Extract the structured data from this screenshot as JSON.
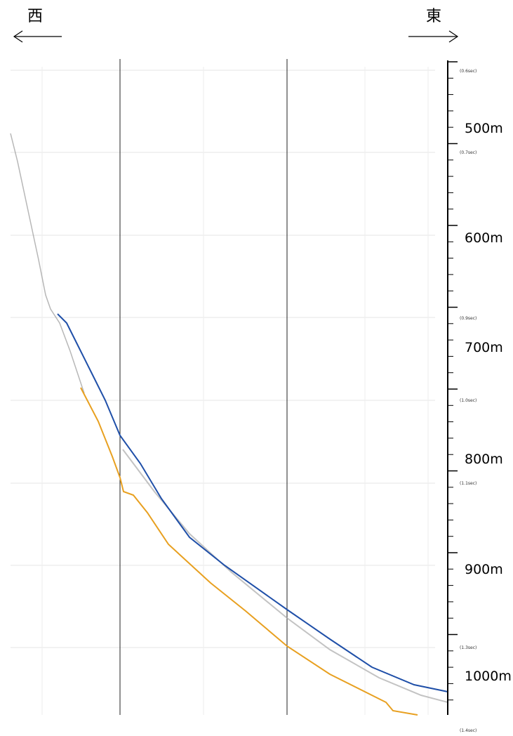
{
  "directions": {
    "west": "西",
    "east": "東"
  },
  "depth_labels": [
    "500m",
    "600m",
    "700m",
    "800m",
    "900m",
    "1000m"
  ],
  "time_labels": [
    "(0.6sec)",
    "(0.7sec)",
    "(0.9sec)",
    "(1.0sec)",
    "(1.1sec)",
    "(1.3sec)",
    "(1.4sec)"
  ]
}
